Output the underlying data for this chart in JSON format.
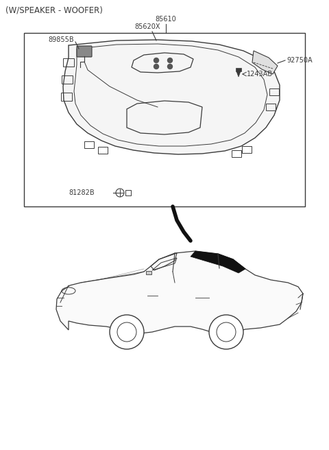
{
  "title_text": "(W/SPEAKER - WOOFER)",
  "bg_color": "#ffffff",
  "label_85610": "85610",
  "label_85620X": "85620X",
  "label_89855B": "89855B",
  "label_92750A": "92750A",
  "label_1243AB": "1243AB",
  "label_81282B": "81282B",
  "line_color": "#3a3a3a",
  "font_size_title": 8.5,
  "font_size_labels": 7.0
}
